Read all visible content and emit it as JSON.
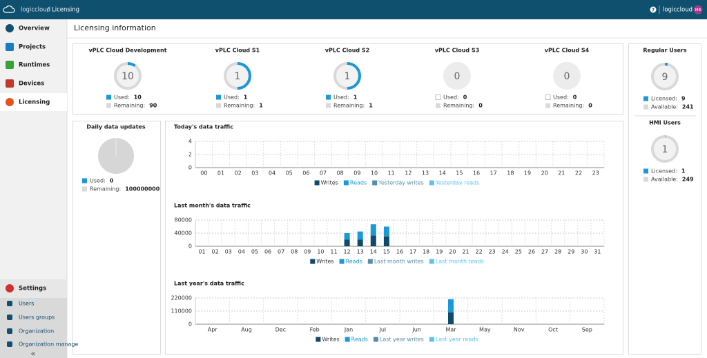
{
  "header": {
    "brand": "logiccloud",
    "separator": "/",
    "page": "Licensing",
    "help": "?",
    "user": "logiccloud",
    "avatar": "MB"
  },
  "sidebar": {
    "nav": [
      "Overview",
      "Projects",
      "Runtimes",
      "Devices",
      "Licensing"
    ],
    "settings": "Settings",
    "settings_items": [
      "Users",
      "Users groups",
      "Organization",
      "Organization manage"
    ],
    "collapse": "«"
  },
  "page_title": "Licensing information",
  "labels": {
    "used": "Used:",
    "remaining": "Remaining:",
    "licensed": "Licensed:",
    "available": "Available:"
  },
  "licenses": [
    {
      "name": "vPLC Cloud Development",
      "used": 10,
      "remaining": 90
    },
    {
      "name": "vPLC Cloud S1",
      "used": 1,
      "remaining": 1
    },
    {
      "name": "vPLC Cloud S2",
      "used": 1,
      "remaining": 1
    },
    {
      "name": "vPLC Cloud S3",
      "used": 0,
      "remaining": 0
    },
    {
      "name": "vPLC Cloud S4",
      "used": 0,
      "remaining": 0
    }
  ],
  "users": [
    {
      "name": "Regular Users",
      "licensed": 9,
      "available": 241
    },
    {
      "name": "HMI Users",
      "licensed": 1,
      "available": 249
    }
  ],
  "daily": {
    "title": "Daily data updates",
    "used": 0,
    "remaining": 100000000
  },
  "chart_data": [
    {
      "type": "bar",
      "stacked": true,
      "title": "Today's data traffic",
      "grid": true,
      "categories": [
        "00",
        "01",
        "02",
        "03",
        "04",
        "05",
        "06",
        "07",
        "08",
        "09",
        "10",
        "11",
        "12",
        "13",
        "14",
        "15",
        "16",
        "17",
        "18",
        "19",
        "20",
        "21",
        "22",
        "23"
      ],
      "ylim": [
        0,
        4
      ],
      "yticks": [
        0,
        2,
        4
      ],
      "series": [
        {
          "name": "Writes",
          "color": "#0e4a6a",
          "legend_color": "#333333",
          "values": [
            0,
            0,
            0,
            0,
            0,
            0,
            0,
            0,
            0,
            0,
            0,
            0,
            0,
            0,
            0,
            0,
            0,
            0,
            0,
            0,
            0,
            0,
            0,
            0
          ]
        },
        {
          "name": "Reads",
          "color": "#1b98d8",
          "legend_color": "#1b98d8",
          "values": [
            0,
            0,
            0,
            0,
            0,
            0,
            0,
            0,
            0,
            0,
            0,
            0,
            0,
            0,
            0,
            0,
            0,
            0,
            0,
            0,
            0,
            0,
            0,
            0
          ]
        },
        {
          "name": "Yesterday writes",
          "color": "#5a8ea8",
          "legend_color": "#5a8ea8",
          "values": [
            0,
            0,
            0,
            0,
            0,
            0,
            0,
            0,
            0,
            0,
            0,
            0,
            0,
            0,
            0,
            0,
            0,
            0,
            0,
            0,
            0,
            0,
            0,
            0
          ]
        },
        {
          "name": "Yesterday reads",
          "color": "#5cc3f0",
          "legend_color": "#5cc3f0",
          "values": [
            0,
            0,
            0,
            0,
            0,
            0,
            0,
            0,
            0,
            0,
            0,
            0,
            0,
            0,
            0,
            0,
            0,
            0,
            0,
            0,
            0,
            0,
            0,
            0
          ]
        }
      ]
    },
    {
      "type": "bar",
      "stacked": true,
      "title": "Last month's data traffic",
      "grid": true,
      "categories": [
        "01",
        "02",
        "03",
        "04",
        "05",
        "06",
        "07",
        "08",
        "09",
        "10",
        "11",
        "12",
        "13",
        "14",
        "15",
        "16",
        "17",
        "18",
        "19",
        "20",
        "21",
        "22",
        "23",
        "24",
        "25",
        "26",
        "27",
        "28",
        "29",
        "30",
        "31"
      ],
      "ylim": [
        0,
        80000
      ],
      "yticks": [
        0,
        40000,
        80000
      ],
      "series": [
        {
          "name": "Writes",
          "color": "#0e4a6a",
          "legend_color": "#333333",
          "values": [
            0,
            0,
            0,
            0,
            0,
            0,
            0,
            0,
            0,
            0,
            0,
            20000,
            20000,
            33000,
            30000,
            0,
            0,
            0,
            0,
            0,
            0,
            0,
            0,
            0,
            0,
            0,
            0,
            0,
            0,
            0,
            0
          ]
        },
        {
          "name": "Reads",
          "color": "#1b98d8",
          "legend_color": "#1b98d8",
          "values": [
            0,
            0,
            0,
            0,
            0,
            0,
            0,
            0,
            0,
            0,
            0,
            20000,
            25000,
            34000,
            30000,
            0,
            0,
            0,
            0,
            0,
            0,
            0,
            0,
            0,
            0,
            0,
            0,
            0,
            0,
            0,
            0
          ]
        },
        {
          "name": "Last month writes",
          "color": "#5a8ea8",
          "legend_color": "#5a8ea8",
          "values": [
            0,
            0,
            0,
            0,
            0,
            0,
            0,
            0,
            0,
            0,
            0,
            0,
            0,
            0,
            0,
            0,
            0,
            0,
            0,
            0,
            0,
            0,
            0,
            0,
            0,
            0,
            0,
            0,
            0,
            0,
            0
          ]
        },
        {
          "name": "Last month reads",
          "color": "#5cc3f0",
          "legend_color": "#5cc3f0",
          "values": [
            0,
            0,
            0,
            0,
            0,
            0,
            0,
            0,
            0,
            0,
            0,
            0,
            0,
            0,
            0,
            0,
            0,
            0,
            0,
            0,
            0,
            0,
            0,
            0,
            0,
            0,
            0,
            0,
            0,
            0,
            0
          ]
        }
      ]
    },
    {
      "type": "bar",
      "stacked": true,
      "title": "Last year's data traffic",
      "grid": true,
      "categories": [
        "Apr",
        "Aug",
        "Dec",
        "Feb",
        "Jan",
        "Jul",
        "Jun",
        "Mar",
        "May",
        "Nov",
        "Oct",
        "Sep"
      ],
      "ylim": [
        0,
        220000
      ],
      "yticks": [
        0,
        110000,
        220000
      ],
      "series": [
        {
          "name": "Writes",
          "color": "#0e4a6a",
          "legend_color": "#333333",
          "values": [
            0,
            0,
            0,
            0,
            0,
            0,
            0,
            100000,
            0,
            0,
            0,
            0
          ]
        },
        {
          "name": "Reads",
          "color": "#1b98d8",
          "legend_color": "#1b98d8",
          "values": [
            0,
            0,
            0,
            0,
            0,
            0,
            0,
            110000,
            0,
            0,
            0,
            0
          ]
        },
        {
          "name": "Last year writes",
          "color": "#5a8ea8",
          "legend_color": "#5a8ea8",
          "values": [
            0,
            0,
            0,
            0,
            0,
            0,
            0,
            0,
            0,
            0,
            0,
            0
          ]
        },
        {
          "name": "Last year reads",
          "color": "#5cc3f0",
          "legend_color": "#5cc3f0",
          "values": [
            0,
            0,
            0,
            0,
            0,
            0,
            0,
            0,
            0,
            0,
            0,
            0
          ]
        }
      ]
    }
  ]
}
